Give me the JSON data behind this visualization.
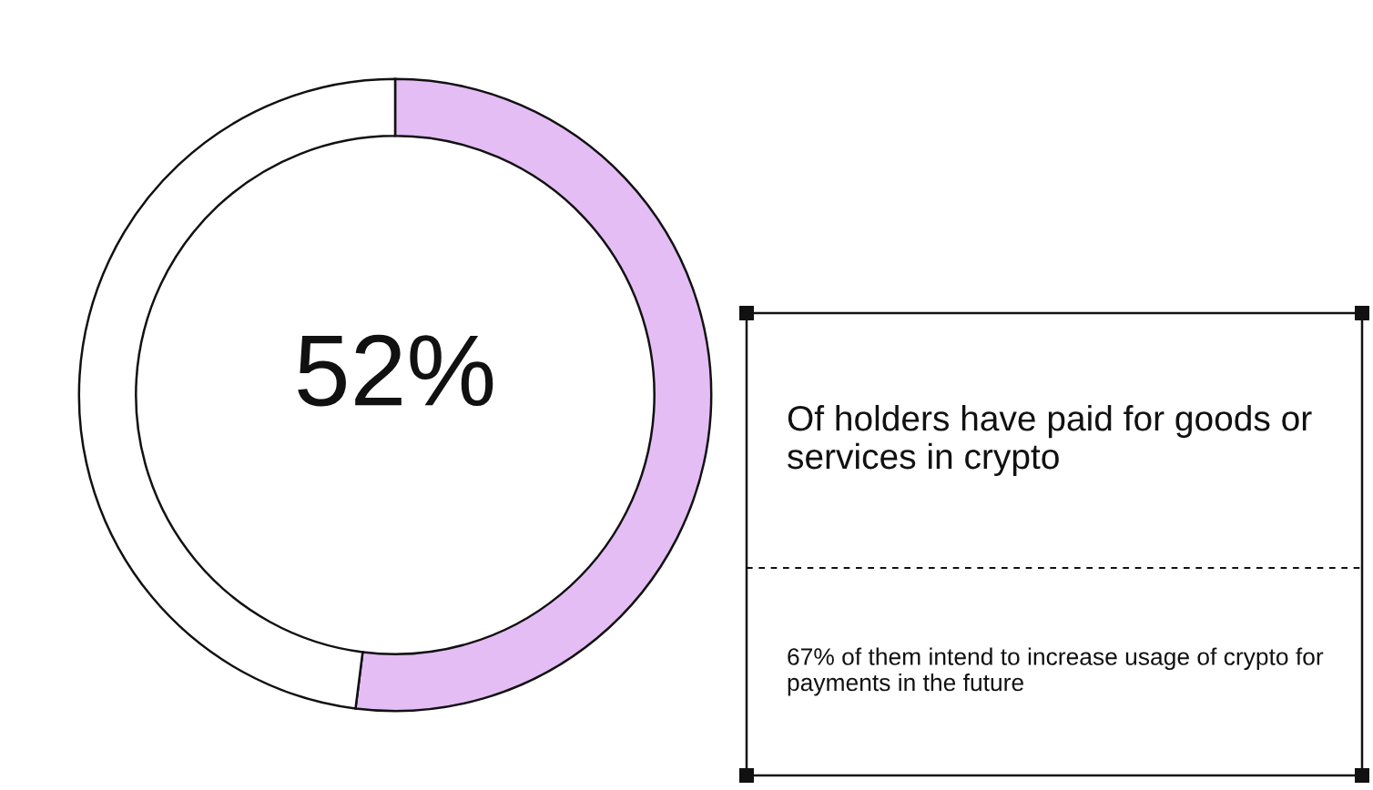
{
  "chart_data": {
    "type": "donut",
    "categories": [
      null,
      null
    ],
    "values": [
      52,
      48
    ],
    "colors": [
      "#e4bdf5",
      "#ffffff"
    ],
    "value_labels": [
      "52%",
      null
    ],
    "annotations": [
      "Of holders have paid for goods or services in crypto",
      "67% of them intend to increase usage of crypto for payments in the future"
    ],
    "legend": false
  }
}
